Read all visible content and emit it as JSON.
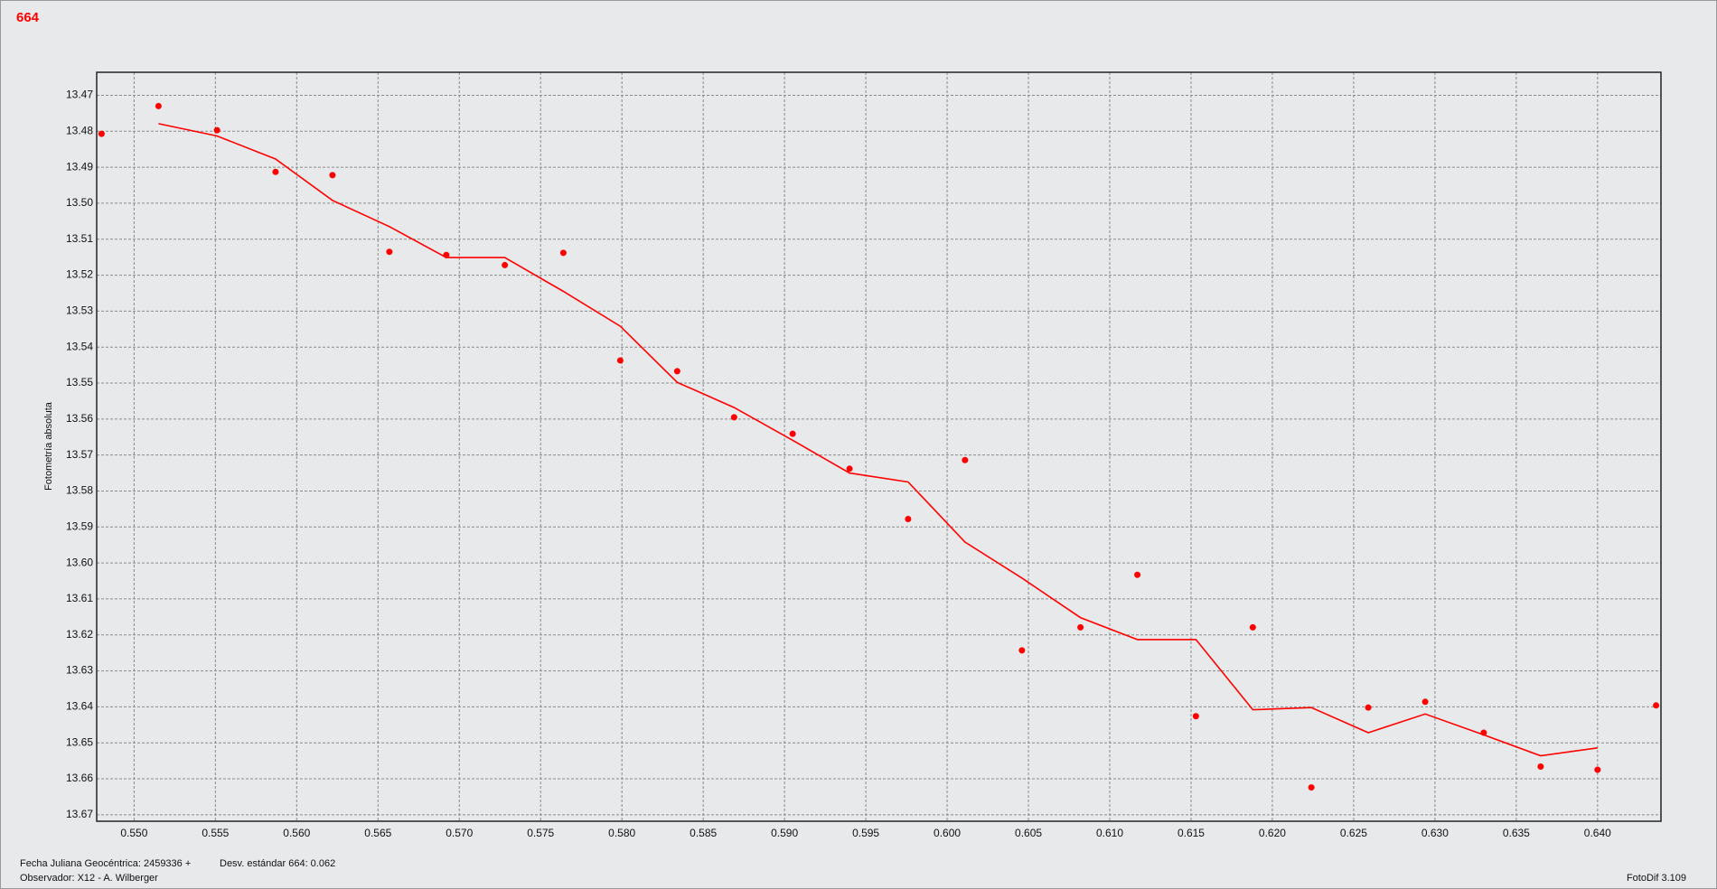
{
  "chart_data": {
    "type": "scatter",
    "title": "664",
    "y_label": "Fotometría absoluta",
    "footer": {
      "left_1": "Fecha Juliana Geocéntrica: 2459336 +",
      "middle_1": "Desv. estándar 664: 0.062",
      "left_2": "Observador: X12 - A. Wilberger",
      "right_2": "FotoDif 3.109"
    },
    "xlim": [
      0.5477,
      0.6439
    ],
    "ylim": [
      13.4636,
      13.6718
    ],
    "y_inverted": true,
    "grid": true,
    "xticks": [
      {
        "value": 0.55,
        "label": "0.550"
      },
      0.555,
      {
        "value": 0.56,
        "label": "0.560"
      },
      0.565,
      {
        "value": 0.57,
        "label": "0.570"
      },
      0.575,
      {
        "value": 0.58,
        "label": "0.580"
      },
      0.585,
      {
        "value": 0.59,
        "label": "0.590"
      },
      0.595,
      {
        "value": 0.6,
        "label": "0.600"
      },
      0.605,
      {
        "value": 0.61,
        "label": "0.610"
      },
      0.615,
      {
        "value": 0.62,
        "label": "0.620"
      },
      0.625,
      {
        "value": 0.63,
        "label": "0.630"
      },
      0.635,
      {
        "value": 0.64,
        "label": "0.640"
      }
    ],
    "yticks": [
      13.47,
      13.48,
      13.49,
      {
        "value": 13.5,
        "label": "13.50"
      },
      13.51,
      13.52,
      13.53,
      13.54,
      13.55,
      13.56,
      13.57,
      13.58,
      13.59,
      {
        "value": 13.6,
        "label": "13.60"
      },
      13.61,
      13.62,
      13.63,
      13.64,
      13.65,
      13.66,
      13.67
    ],
    "series": [
      {
        "kind": "points",
        "color": "#ff0000",
        "x": [
          0.548,
          0.5515,
          0.5551,
          0.5587,
          0.5622,
          0.5657,
          0.5692,
          0.5728,
          0.5764,
          0.5799,
          0.5834,
          0.5869,
          0.5905,
          0.594,
          0.5976,
          0.6011,
          0.6046,
          0.6082,
          0.6117,
          0.6153,
          0.6188,
          0.6224,
          0.6259,
          0.6294,
          0.633,
          0.6365,
          0.64,
          0.6436
        ],
        "values": [
          13.4807,
          13.473,
          13.4797,
          13.4913,
          13.4922,
          13.5135,
          13.5144,
          13.5172,
          13.5138,
          13.5437,
          13.5467,
          13.5595,
          13.5641,
          13.5738,
          13.5878,
          13.5714,
          13.6243,
          13.6179,
          13.6033,
          13.6426,
          13.6179,
          13.6624,
          13.6402,
          13.6386,
          13.6472,
          13.6566,
          13.6575,
          13.6396
        ]
      },
      {
        "kind": "line",
        "color": "#ff0000",
        "x": [
          0.5515,
          0.5551,
          0.5587,
          0.5622,
          0.5657,
          0.5692,
          0.5728,
          0.5764,
          0.5799,
          0.5834,
          0.5869,
          0.5905,
          0.594,
          0.5976,
          0.6011,
          0.6046,
          0.6082,
          0.6117,
          0.6153,
          0.6188,
          0.6224,
          0.6259,
          0.6294,
          0.633,
          0.6365,
          0.64
        ],
        "values": [
          13.4779,
          13.4813,
          13.4877,
          13.4992,
          13.5065,
          13.5151,
          13.5151,
          13.5245,
          13.5342,
          13.5498,
          13.5568,
          13.5659,
          13.575,
          13.5775,
          13.5942,
          13.6042,
          13.6152,
          13.6213,
          13.6213,
          13.6408,
          13.6402,
          13.6472,
          13.642,
          13.6478,
          13.6536,
          13.6514
        ]
      }
    ]
  }
}
